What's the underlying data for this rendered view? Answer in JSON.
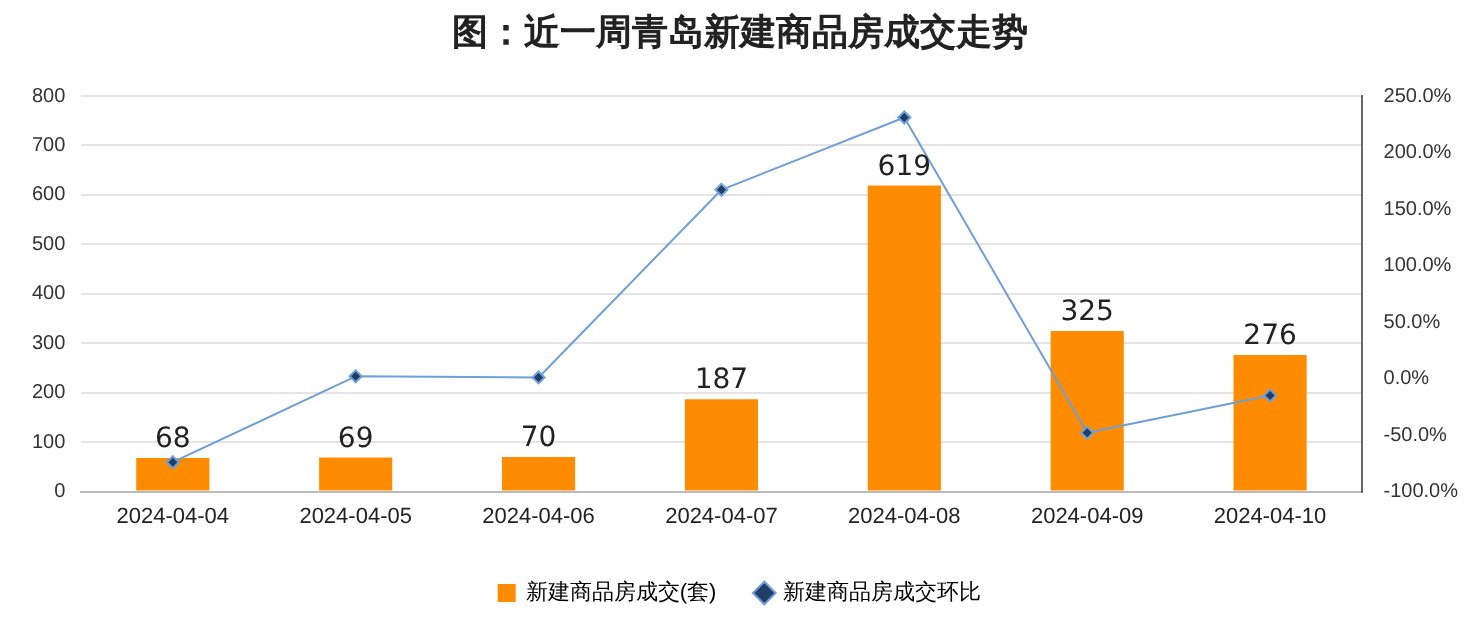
{
  "chart_data": {
    "type": "bar",
    "title": "图：近一周青岛新建商品房成交走势",
    "categories": [
      "2024-04-04",
      "2024-04-05",
      "2024-04-06",
      "2024-04-07",
      "2024-04-08",
      "2024-04-09",
      "2024-04-10"
    ],
    "series": [
      {
        "name": "新建商品房成交(套)",
        "color": "#ff8c00",
        "values": [
          68,
          69,
          70,
          187,
          619,
          325,
          276
        ],
        "value_labels": [
          "68",
          "69",
          "70",
          "187",
          "619",
          "325",
          "276"
        ]
      },
      {
        "name": "新建商品房成交环比",
        "type": "line",
        "axis": "y2",
        "color": "#6f9fd8",
        "marker": "diamond",
        "values": [
          -74,
          2,
          1,
          167,
          231,
          -48,
          -15
        ]
      }
    ],
    "ylim": [
      0,
      800
    ],
    "yticks": [
      0,
      100,
      200,
      300,
      400,
      500,
      600,
      700,
      800
    ],
    "y2lim": [
      -100,
      250
    ],
    "y2ticks": [
      {
        "value": -100,
        "label": "-100.0%"
      },
      {
        "value": -50,
        "label": "-50.0%"
      },
      {
        "value": 0,
        "label": "0.0%"
      },
      {
        "value": 50,
        "label": "50.0%"
      },
      {
        "value": 100,
        "label": "100.0%"
      },
      {
        "value": 150,
        "label": "150.0%"
      },
      {
        "value": 200,
        "label": "200.0%"
      },
      {
        "value": 250,
        "label": "250.0%"
      }
    ],
    "grid": "y",
    "legend": "bottom"
  }
}
